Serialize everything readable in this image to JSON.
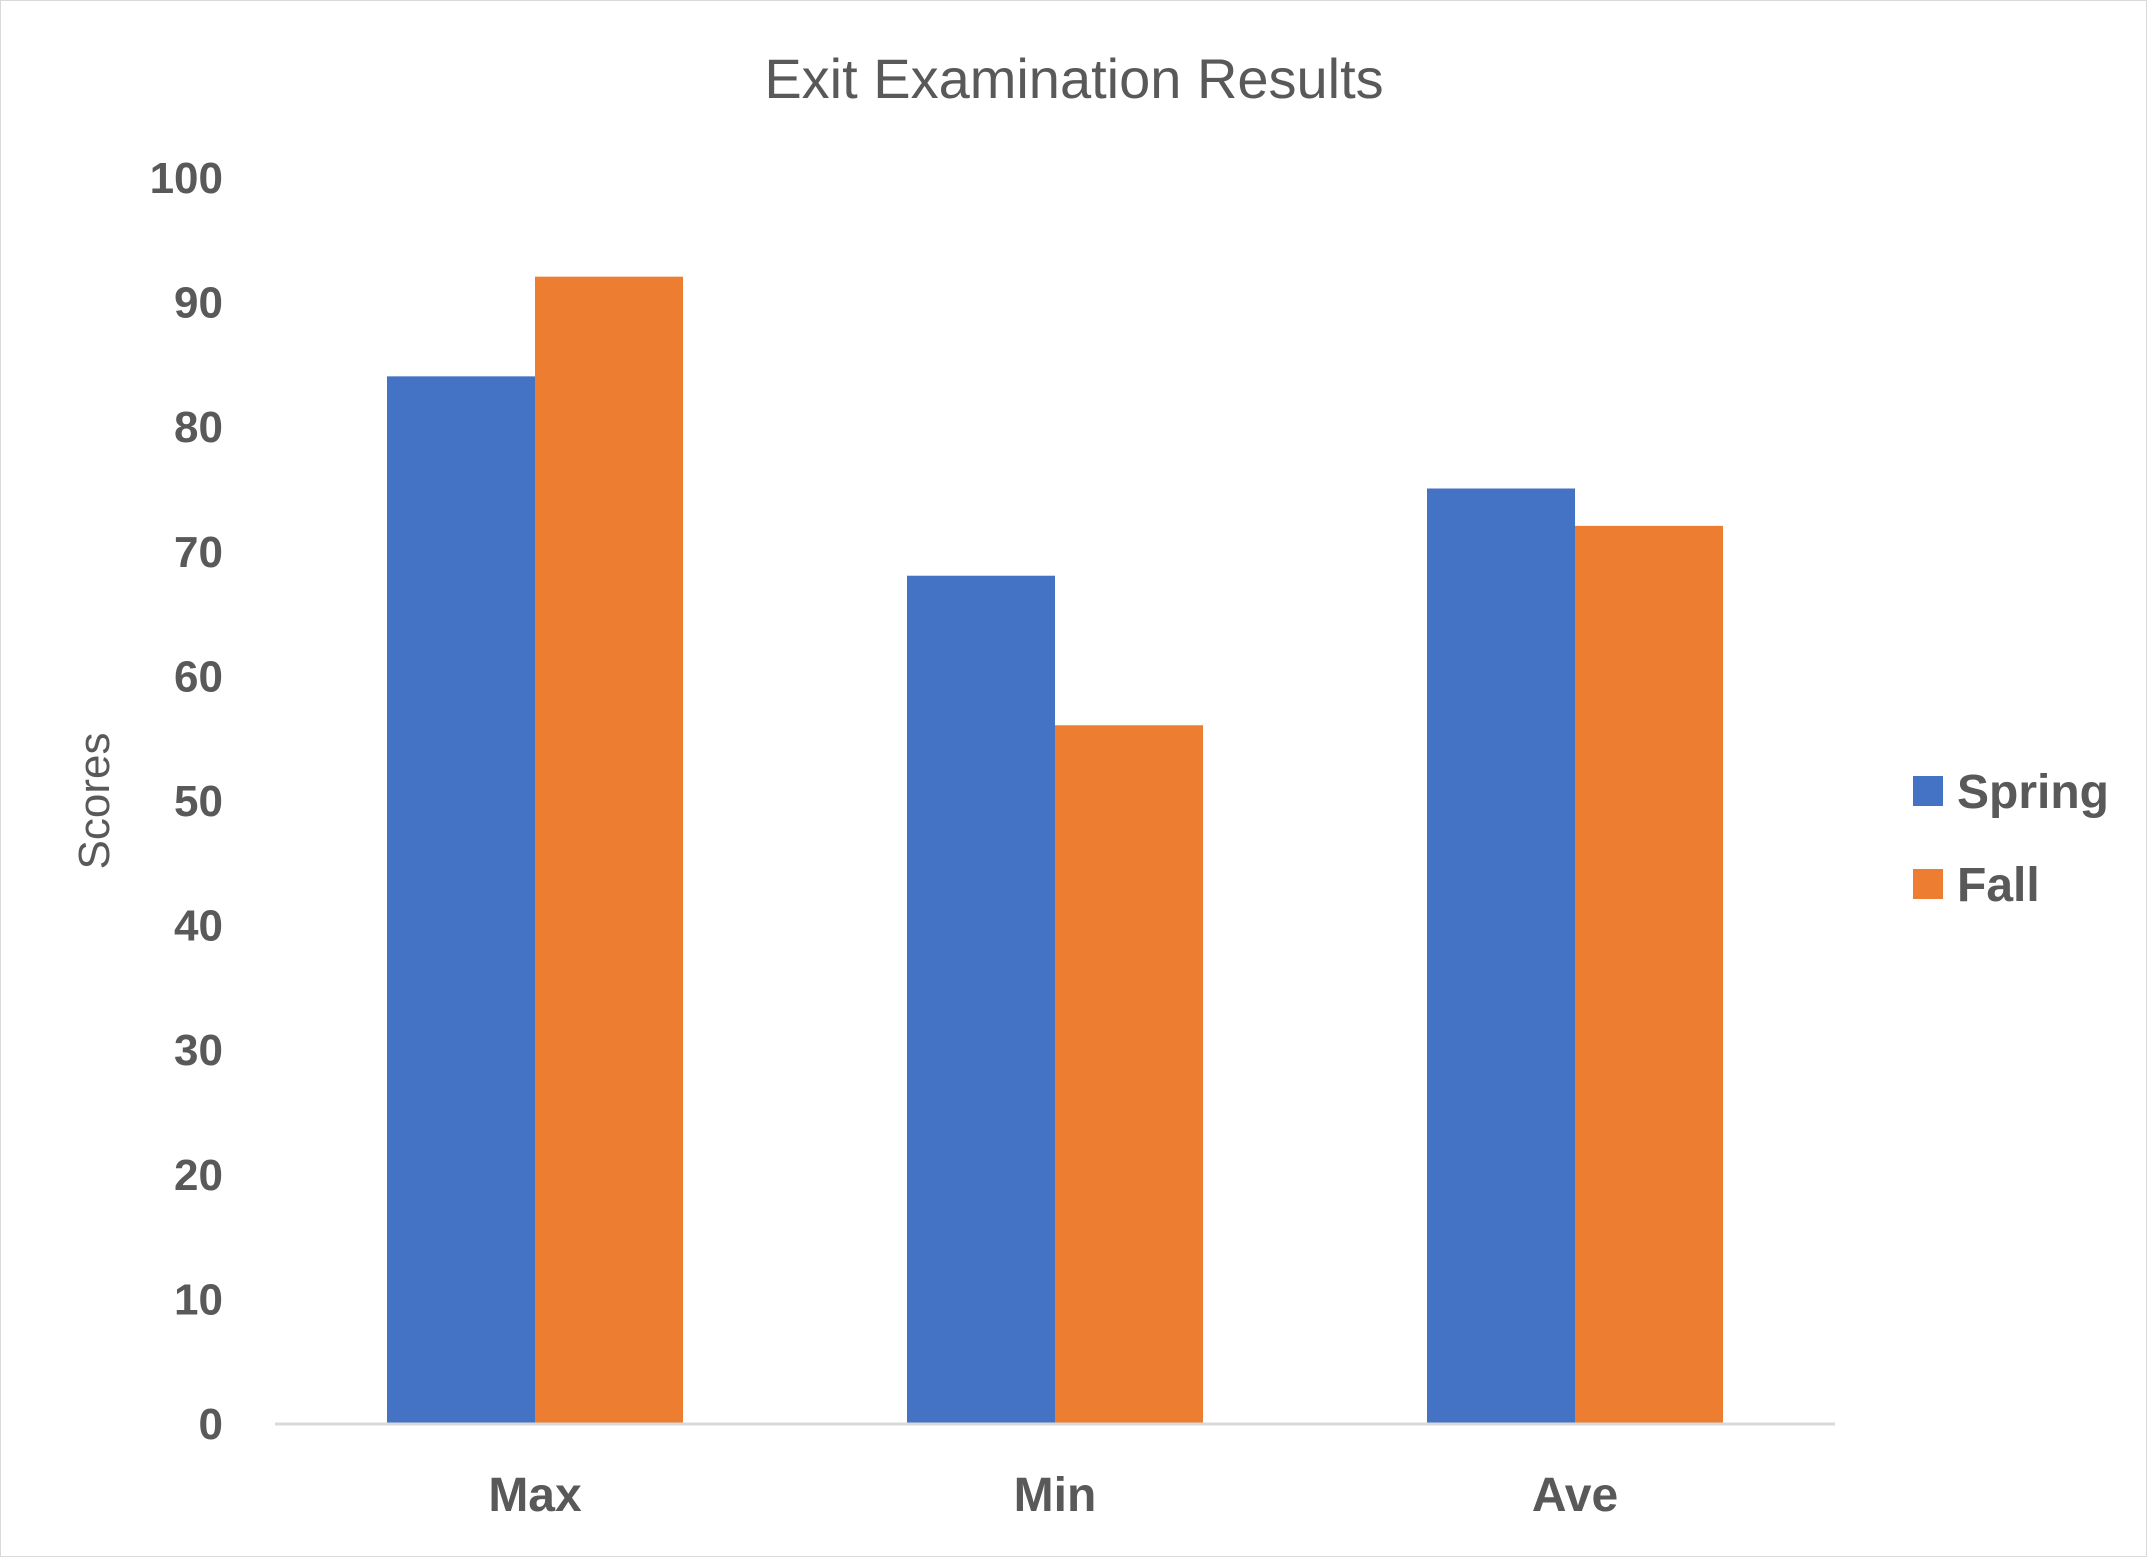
{
  "chart_data": {
    "type": "bar",
    "title": "Exit Examination Results",
    "xlabel": "",
    "ylabel": "Scores",
    "categories": [
      "Max",
      "Min",
      "Ave"
    ],
    "series": [
      {
        "name": "Spring",
        "values": [
          84,
          68,
          75
        ],
        "color": "#4472C4"
      },
      {
        "name": "Fall",
        "values": [
          92,
          56,
          72
        ],
        "color": "#ED7D31"
      }
    ],
    "ylim": [
      0,
      100
    ],
    "yticks": [
      0,
      10,
      20,
      30,
      40,
      50,
      60,
      70,
      80,
      90,
      100
    ],
    "grid": false,
    "legend_position": "right",
    "axis_color": "#D9D9D9",
    "text_color": "#595959"
  }
}
